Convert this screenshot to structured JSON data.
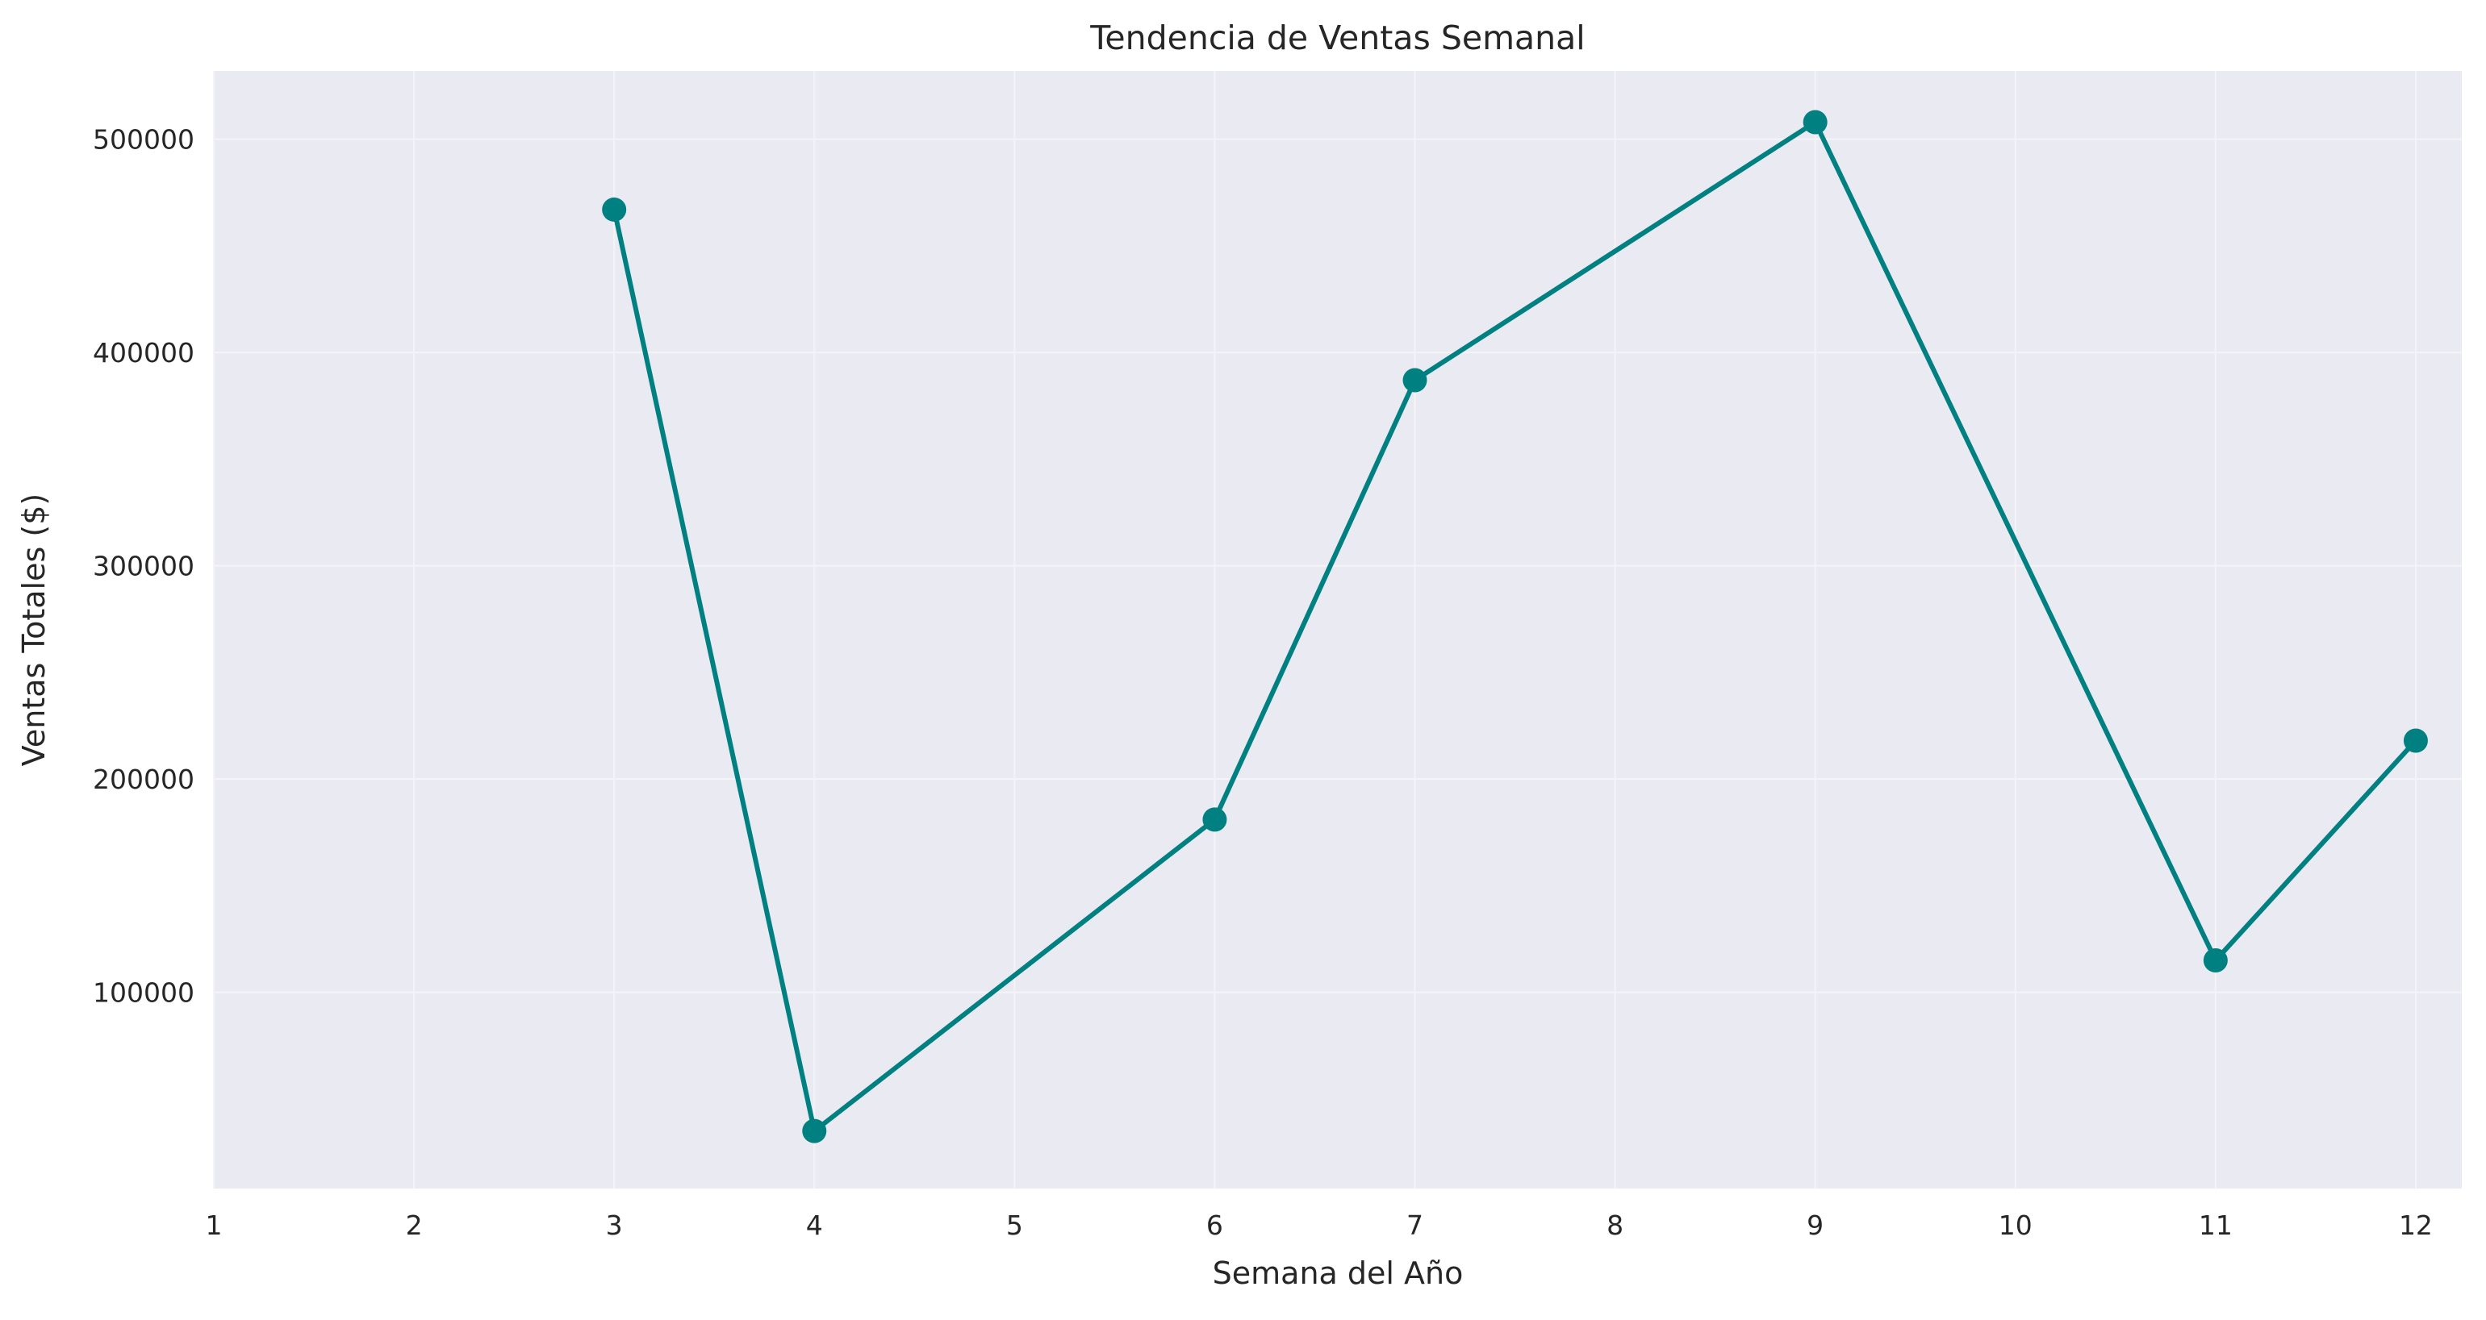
{
  "chart_data": {
    "type": "line",
    "title": "Tendencia de Ventas Semanal",
    "xlabel": "Semana del Año",
    "ylabel": "Ventas Totales ($)",
    "x_ticks": [
      1,
      2,
      3,
      4,
      5,
      6,
      7,
      8,
      9,
      10,
      11,
      12
    ],
    "y_ticks": [
      100000,
      200000,
      300000,
      400000,
      500000
    ],
    "xlim": [
      1,
      12.23
    ],
    "ylim": [
      8000,
      532000
    ],
    "grid": true,
    "series": [
      {
        "x": [
          3,
          4,
          6,
          7,
          9,
          11,
          12
        ],
        "y": [
          467000,
          35000,
          181000,
          387000,
          508000,
          115000,
          218000
        ]
      }
    ],
    "colors": {
      "line": "#008080",
      "marker": "#008080",
      "plot_background": "#eaeaf2",
      "grid": "#f4f4f8",
      "text": "#262626"
    }
  }
}
